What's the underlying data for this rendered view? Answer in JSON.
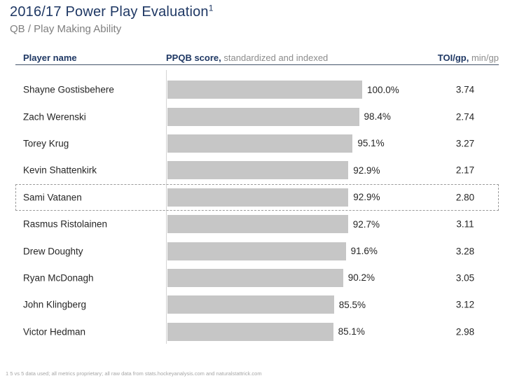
{
  "header": {
    "title": "2016/17 Power Play Evaluation",
    "title_footnote_marker": "1",
    "subtitle": "QB / Play Making Ability"
  },
  "table_header": {
    "player_col": "Player name",
    "score_col_bold": "PPQB score,",
    "score_col_rest": "standardized and indexed",
    "toi_col_bold": "TOI/gp,",
    "toi_col_rest": "min/gp"
  },
  "chart_data": {
    "type": "bar",
    "orientation": "horizontal",
    "title": "PPQB score, standardized and indexed",
    "xlabel": "PPQB score (%)",
    "xlim": [
      0,
      100
    ],
    "value_suffix": "%",
    "grid": false,
    "legend": "none",
    "categories": [
      "Shayne Gostisbehere",
      "Zach Werenski",
      "Torey Krug",
      "Kevin Shattenkirk",
      "Sami Vatanen",
      "Rasmus Ristolainen",
      "Drew Doughty",
      "Ryan McDonagh",
      "John Klingberg",
      "Victor Hedman"
    ],
    "series": [
      {
        "name": "PPQB score",
        "values": [
          100.0,
          98.4,
          95.1,
          92.9,
          92.9,
          92.7,
          91.6,
          90.2,
          85.5,
          85.1
        ]
      },
      {
        "name": "TOI/gp (min/gp)",
        "values": [
          3.74,
          2.74,
          3.27,
          2.17,
          2.8,
          3.11,
          3.28,
          3.05,
          3.12,
          2.98
        ]
      }
    ],
    "rows": [
      {
        "name": "Shayne Gostisbehere",
        "score": 100.0,
        "score_label": "100.0%",
        "toi": "3.74",
        "highlighted": false
      },
      {
        "name": "Zach Werenski",
        "score": 98.4,
        "score_label": "98.4%",
        "toi": "2.74",
        "highlighted": false
      },
      {
        "name": "Torey Krug",
        "score": 95.1,
        "score_label": "95.1%",
        "toi": "3.27",
        "highlighted": false
      },
      {
        "name": "Kevin Shattenkirk",
        "score": 92.9,
        "score_label": "92.9%",
        "toi": "2.17",
        "highlighted": false
      },
      {
        "name": "Sami Vatanen",
        "score": 92.9,
        "score_label": "92.9%",
        "toi": "2.80",
        "highlighted": true
      },
      {
        "name": "Rasmus Ristolainen",
        "score": 92.7,
        "score_label": "92.7%",
        "toi": "3.11",
        "highlighted": false
      },
      {
        "name": "Drew Doughty",
        "score": 91.6,
        "score_label": "91.6%",
        "toi": "3.28",
        "highlighted": false
      },
      {
        "name": "Ryan McDonagh",
        "score": 90.2,
        "score_label": "90.2%",
        "toi": "3.05",
        "highlighted": false
      },
      {
        "name": "John Klingberg",
        "score": 85.5,
        "score_label": "85.5%",
        "toi": "3.12",
        "highlighted": false
      },
      {
        "name": "Victor Hedman",
        "score": 85.1,
        "score_label": "85.1%",
        "toi": "2.98",
        "highlighted": false
      }
    ],
    "highlighted_player": "Sami Vatanen"
  },
  "footnote": {
    "marker": "1",
    "text": "5 vs 5 data used; all metrics proprietary; all raw data from stats.hockeyanalysis.com and naturalstattrick.com"
  },
  "colors": {
    "accent_navy": "#1F3864",
    "subtitle_gray": "#7F7F7F",
    "header_gray": "#8C8C8C",
    "bar_gray": "#C6C6C6",
    "axis_gray": "#D4D4D4",
    "highlight_dash_gray": "#9B9B9B",
    "body_text": "#262626"
  }
}
